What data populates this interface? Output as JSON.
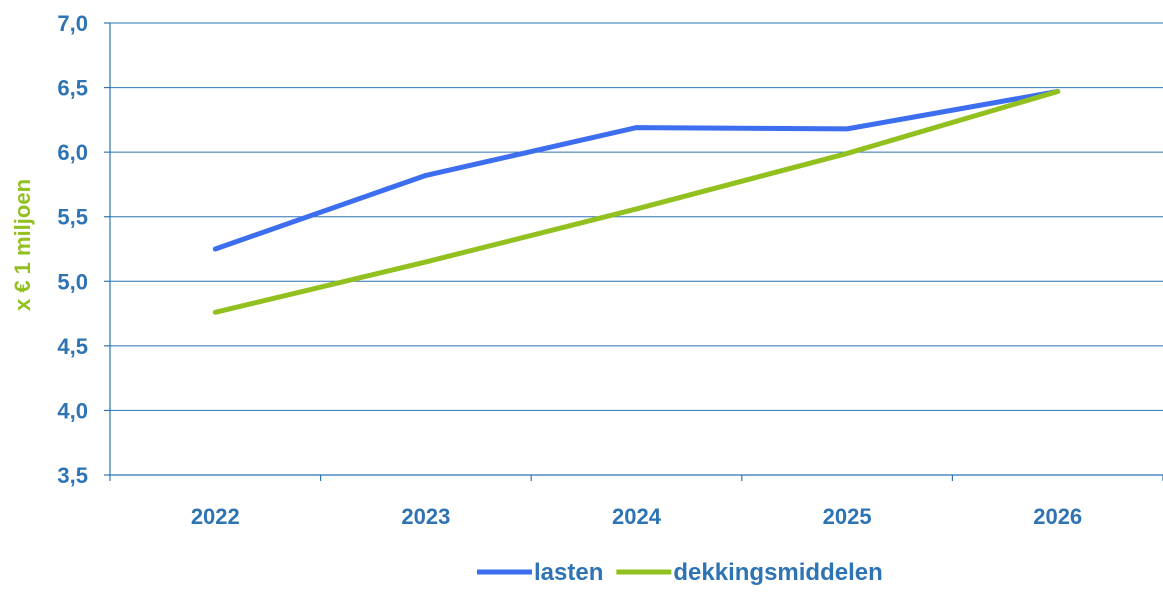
{
  "chart_data": {
    "type": "line",
    "title": "",
    "xlabel": "",
    "ylabel": "x € 1 miljoen",
    "categories": [
      "2022",
      "2023",
      "2024",
      "2025",
      "2026"
    ],
    "ylim": [
      3.5,
      7.0
    ],
    "yticks": [
      "3,5",
      "4,0",
      "4,5",
      "5,0",
      "5,5",
      "6,0",
      "6,5",
      "7,0"
    ],
    "grid": true,
    "legend_position": "bottom",
    "series": [
      {
        "name": "lasten",
        "color": "#3d6ef0",
        "values": [
          5.25,
          5.82,
          6.19,
          6.18,
          6.47
        ]
      },
      {
        "name": "dekkingsmiddelen",
        "color": "#92c01f",
        "values": [
          4.76,
          5.15,
          5.56,
          5.99,
          6.47
        ]
      }
    ],
    "colors": {
      "axis_text": "#2e74b5",
      "ylabel": "#92c01f",
      "grid": "#2e74b5"
    }
  }
}
